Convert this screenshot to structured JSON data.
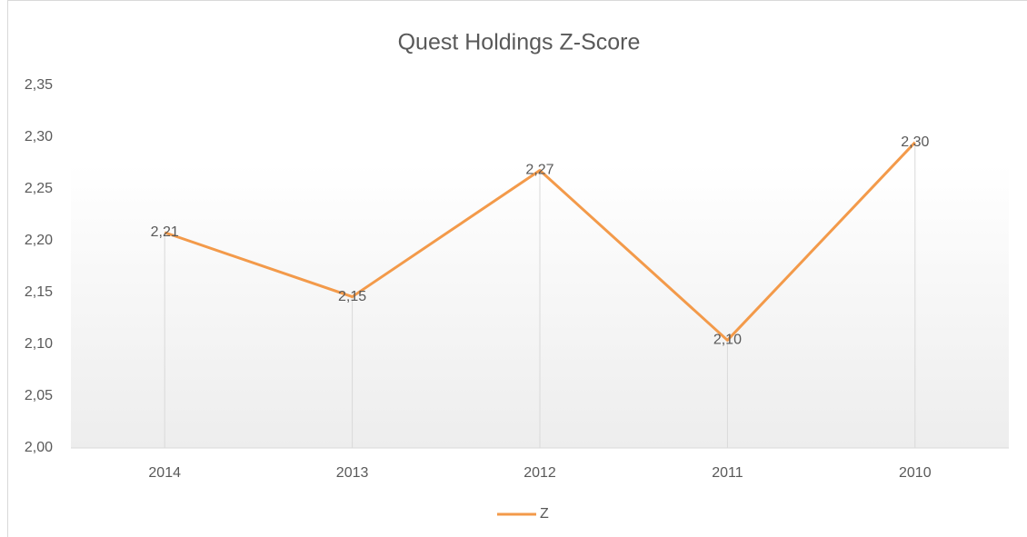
{
  "chart_data": {
    "type": "line",
    "title": "Quest Holdings Z-Score",
    "categories": [
      "2014",
      "2013",
      "2012",
      "2011",
      "2010"
    ],
    "series": [
      {
        "name": "Z",
        "color": "#f39a4a",
        "values": [
          2.208,
          2.146,
          2.268,
          2.104,
          2.295
        ],
        "value_labels": [
          "2,21",
          "2,15",
          "2,27",
          "2,10",
          "2,30"
        ]
      }
    ],
    "ylim": [
      2,
      2.35
    ],
    "yticks": [
      {
        "value": 2,
        "label": "2,00"
      },
      {
        "value": 2.05,
        "label": "2,05"
      },
      {
        "value": 2.1,
        "label": "2,10"
      },
      {
        "value": 2.15,
        "label": "2,15"
      },
      {
        "value": 2.2,
        "label": "2,20"
      },
      {
        "value": 2.25,
        "label": "2,25"
      },
      {
        "value": 2.3,
        "label": "2,30"
      },
      {
        "value": 2.35,
        "label": "2,35"
      }
    ],
    "grid": false,
    "drop_lines": true,
    "legend": "bottom"
  }
}
